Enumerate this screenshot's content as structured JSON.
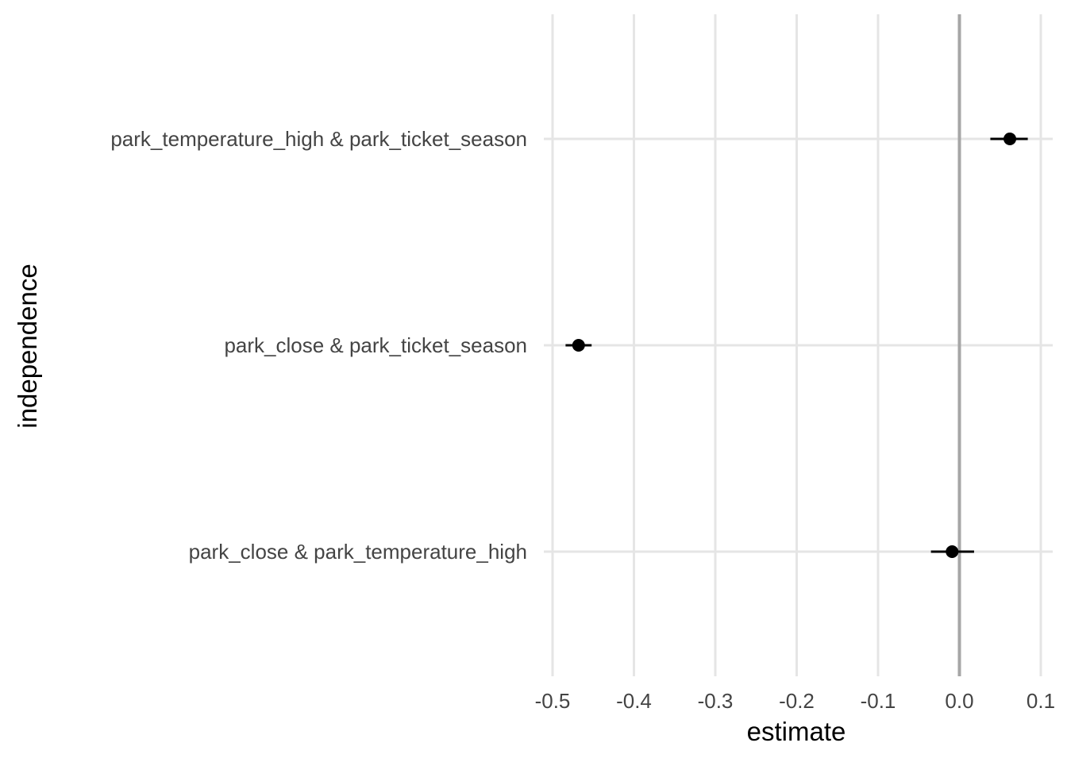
{
  "chart_data": {
    "type": "scatter",
    "subtype": "point-with-error-bars",
    "xlabel": "estimate",
    "ylabel": "independence",
    "xlim": [
      -0.5,
      0.1
    ],
    "x_ticks": [
      -0.5,
      -0.4,
      -0.3,
      -0.2,
      -0.1,
      0.0,
      0.1
    ],
    "x_tick_labels": [
      "-0.5",
      "-0.4",
      "-0.3",
      "-0.2",
      "-0.1",
      "0.0",
      "0.1"
    ],
    "reference_line_x": 0.0,
    "grid": true,
    "categories": [
      "park_temperature_high & park_ticket_season",
      "park_close & park_ticket_season",
      "park_close & park_temperature_high"
    ],
    "points": [
      {
        "category": "park_temperature_high & park_ticket_season",
        "estimate": 0.062,
        "low": 0.038,
        "high": 0.084
      },
      {
        "category": "park_close & park_ticket_season",
        "estimate": -0.468,
        "low": -0.484,
        "high": -0.452
      },
      {
        "category": "park_close & park_temperature_high",
        "estimate": -0.009,
        "low": -0.035,
        "high": 0.018
      }
    ],
    "colors": {
      "point": "#000000",
      "grid": "#e5e5e5",
      "reference": "#a6a6a6",
      "tick_text": "#444444"
    }
  }
}
